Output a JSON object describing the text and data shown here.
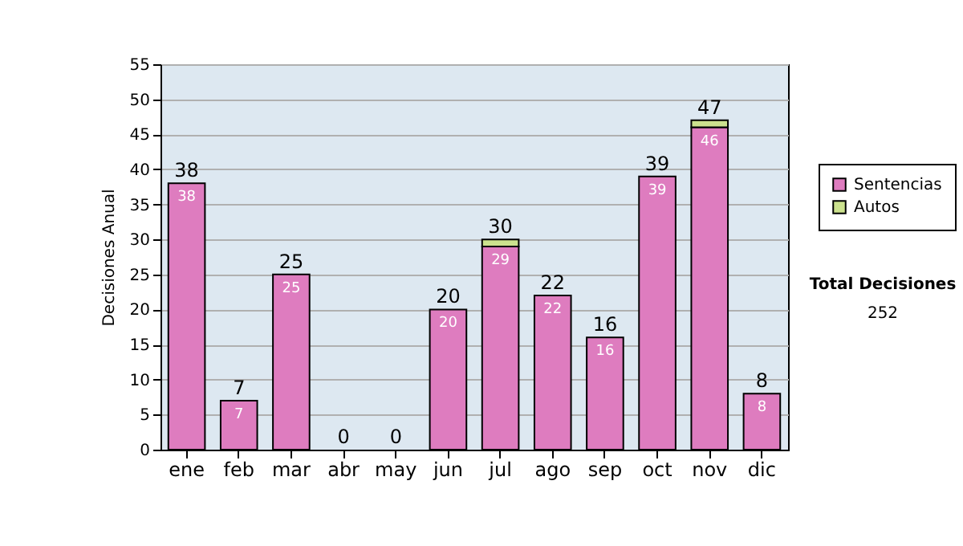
{
  "chart_data": {
    "type": "bar",
    "ylabel": "Decisiones Anual",
    "categories": [
      "ene",
      "feb",
      "mar",
      "abr",
      "may",
      "jun",
      "jul",
      "ago",
      "sep",
      "oct",
      "nov",
      "dic"
    ],
    "series": [
      {
        "name": "Sentencias",
        "color": "#de7cbf",
        "values": [
          38,
          7,
          25,
          0,
          0,
          20,
          29,
          22,
          16,
          39,
          46,
          8
        ],
        "value_labels": [
          "38",
          "7",
          "25",
          null,
          null,
          "20",
          "29",
          "22",
          "16",
          "39",
          "46",
          "8"
        ]
      },
      {
        "name": "Autos",
        "color": "#cce28e",
        "values": [
          0,
          0,
          0,
          0,
          0,
          0,
          1,
          0,
          0,
          0,
          1,
          0
        ]
      }
    ],
    "stacked": true,
    "totals": [
      "38",
      "7",
      "25",
      "0",
      "0",
      "20",
      "30",
      "22",
      "16",
      "39",
      "47",
      "8"
    ],
    "ylim": [
      0,
      55
    ],
    "yticks": [
      0,
      5,
      10,
      15,
      20,
      25,
      30,
      35,
      40,
      45,
      50,
      55
    ],
    "grid": "y",
    "legend": "right",
    "annotations": [
      "Total Decisiones",
      "252"
    ]
  }
}
